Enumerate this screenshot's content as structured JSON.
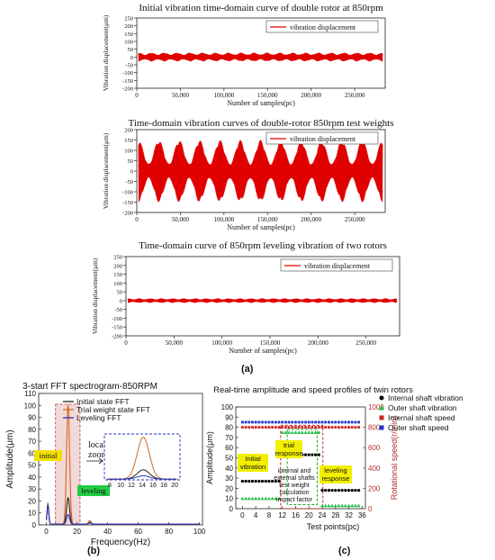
{
  "chart_data": [
    {
      "type": "line",
      "title": "Initial vibration time-domain curve of double rotor at 850rpm",
      "xlabel": "Number of samples(pc)",
      "ylabel": "Vibration displacement(μm)",
      "xlim": [
        0,
        285000
      ],
      "ylim": [
        -200,
        250
      ],
      "xticks": [
        0,
        50000,
        100000,
        150000,
        200000,
        250000
      ],
      "xtick_labels": [
        "0",
        "50,000",
        "100,000",
        "150,000",
        "200,000",
        "250,000"
      ],
      "yticks": [
        -200,
        -150,
        -100,
        -50,
        0,
        50,
        100,
        150,
        200,
        250
      ],
      "series": [
        {
          "name": "vibration displacement",
          "color": "#e00000",
          "envelope_min": 15,
          "envelope_max": 28,
          "beat_cycles": 19
        }
      ],
      "legend": "top-right"
    },
    {
      "type": "line",
      "title": "Time-domain vibration curves of double-rotor 850rpm test weights",
      "xlabel": "Number of samples(pc)",
      "ylabel": "Vibration displacement(μm)",
      "xlim": [
        0,
        285000
      ],
      "ylim": [
        -200,
        200
      ],
      "xticks": [
        0,
        50000,
        100000,
        150000,
        200000,
        250000
      ],
      "xtick_labels": [
        "0",
        "50,000",
        "100,000",
        "150,000",
        "200,000",
        "250,000"
      ],
      "yticks": [
        -200,
        -150,
        -100,
        -50,
        0,
        50,
        100,
        150,
        200
      ],
      "series": [
        {
          "name": "vibration displacement",
          "color": "#e00000",
          "envelope_min": 35,
          "envelope_max": 150,
          "beat_cycles": 12
        }
      ],
      "legend": "top-right"
    },
    {
      "type": "line",
      "title": "Time-domain curve of 850rpm leveling vibration of two rotors",
      "xlabel": "Number of samples(pc)",
      "ylabel": "Vibration displacement(μm)",
      "xlim": [
        0,
        285000
      ],
      "ylim": [
        -200,
        250
      ],
      "xticks": [
        0,
        50000,
        100000,
        150000,
        200000,
        250000
      ],
      "xtick_labels": [
        "0",
        "50,000",
        "100,000",
        "150,000",
        "200,000",
        "250,000"
      ],
      "yticks": [
        -200,
        -150,
        -100,
        -50,
        0,
        50,
        100,
        150,
        200,
        250
      ],
      "series": [
        {
          "name": "vibration displacement",
          "color": "#e00000",
          "envelope_min": 7,
          "envelope_max": 13,
          "beat_cycles": 24
        }
      ],
      "legend": "top-right"
    },
    {
      "type": "line",
      "title": "3-start FFT spectrogram-850RPM",
      "xlabel": "Frequency(Hz)",
      "ylabel": "Amplitude(μm)",
      "xlim": [
        -5,
        102
      ],
      "ylim": [
        0,
        110
      ],
      "xticks": [
        0,
        20,
        40,
        60,
        80,
        100
      ],
      "yticks": [
        0,
        10,
        20,
        30,
        40,
        50,
        60,
        70,
        80,
        90,
        100,
        110
      ],
      "series": [
        {
          "name": "Initial state FFT",
          "color": "#222222",
          "peak_hz": 14.2,
          "peak_amp": 22,
          "harmonic_amp": 1.5
        },
        {
          "name": "Trial weight state FFT",
          "color": "#d2691e",
          "peak_hz": 14.2,
          "peak_amp": 100,
          "harmonic_amp": 3
        },
        {
          "name": "Leveling FFT",
          "color": "#2233bb",
          "peak_hz": 14.2,
          "peak_amp": 8,
          "harmonic_amp": 1
        }
      ],
      "legend": "top-right",
      "annotations": {
        "initial": "initial",
        "local_zoom": [
          "local",
          "zoom"
        ],
        "leveling": "leveling"
      },
      "inset": {
        "xlim": [
          7,
          21
        ],
        "ylim": [
          0,
          110
        ],
        "xtick_labels": [
          "8",
          "10",
          "12",
          "14",
          "16",
          "18",
          "20"
        ]
      }
    },
    {
      "type": "line",
      "title": "Real-time amplitude and speed profiles of twin rotors",
      "xlabel": "Test points(pc)",
      "ylabel": "Amplitude(μm)",
      "y2label": "Rotational speed(r/min)",
      "xlim": [
        -2,
        37
      ],
      "ylim": [
        0,
        100
      ],
      "y2lim": [
        0,
        1000
      ],
      "xticks": [
        0,
        4,
        8,
        12,
        16,
        20,
        24,
        28,
        32,
        36
      ],
      "yticks": [
        0,
        10,
        20,
        30,
        40,
        50,
        60,
        70,
        80,
        90,
        100
      ],
      "y2ticks": [
        0,
        200,
        400,
        600,
        800,
        1000
      ],
      "series": [
        {
          "name": "Internal shaft vibration",
          "color": "#000000",
          "marker": "circle",
          "segments": [
            [
              0,
              11,
              27
            ],
            [
              12,
              23,
              53
            ],
            [
              24,
              35,
              18
            ]
          ]
        },
        {
          "name": "Outer shaft vibration",
          "color": "#22bb44",
          "marker": "triangle",
          "segments": [
            [
              0,
              11,
              10
            ],
            [
              12,
              23,
              75
            ],
            [
              24,
              35,
              3
            ]
          ]
        },
        {
          "name": "Internal shaft speed",
          "color": "#cc2222",
          "marker": "square",
          "value": 800
        },
        {
          "name": "Outer shaft speed",
          "color": "#2233cc",
          "marker": "square",
          "value": 850
        }
      ],
      "legend": "top-right",
      "annotations": {
        "initial": [
          "Initial",
          "vibration"
        ],
        "trial": [
          "trial",
          "response"
        ],
        "leveling": [
          "leveling",
          "response"
        ],
        "calc": [
          "internal and",
          "external shafts",
          "test weight",
          "calculation",
          "impact factor"
        ]
      }
    }
  ],
  "captions": {
    "a": "(a)",
    "b": "(b)",
    "c": "(c)"
  }
}
